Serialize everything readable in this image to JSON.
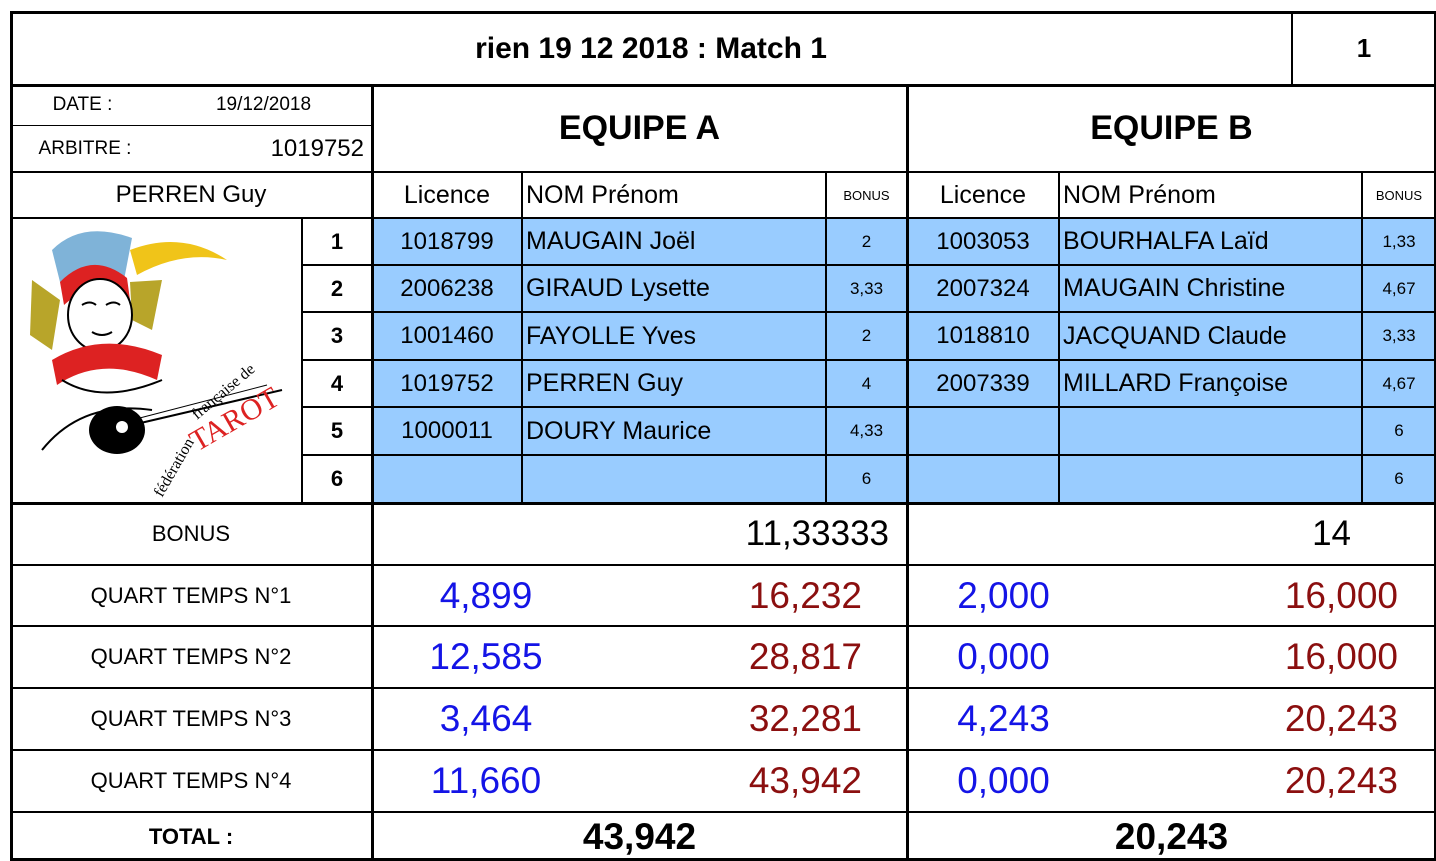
{
  "header": {
    "title": "rien 19 12 2018 : Match 1",
    "number": "1"
  },
  "info": {
    "date_label": "DATE :",
    "date": "19/12/2018",
    "referee_label": "ARBITRE :",
    "referee_licence": "1019752",
    "referee_name": "PERREN Guy"
  },
  "logo": {
    "texts": [
      "fédération",
      "française de",
      "TAROT"
    ]
  },
  "row_numbers": [
    "1",
    "2",
    "3",
    "4",
    "5",
    "6"
  ],
  "labels": {
    "bonus": "BONUS",
    "quarters": [
      "QUART TEMPS N°1",
      "QUART TEMPS N°2",
      "QUART TEMPS N°3",
      "QUART TEMPS N°4"
    ],
    "total": "TOTAL :"
  },
  "teams": [
    {
      "name": "EQUIPE A",
      "columns": [
        "Licence",
        "NOM Prénom",
        "BONUS"
      ],
      "players": [
        {
          "licence": "1018799",
          "name": "MAUGAIN Joël",
          "bonus": "2"
        },
        {
          "licence": "2006238",
          "name": "GIRAUD Lysette",
          "bonus": "3,33"
        },
        {
          "licence": "1001460",
          "name": "FAYOLLE Yves",
          "bonus": "2"
        },
        {
          "licence": "1019752",
          "name": "PERREN Guy",
          "bonus": "4"
        },
        {
          "licence": "1000011",
          "name": "DOURY Maurice",
          "bonus": "4,33"
        },
        {
          "bonus": "6"
        }
      ],
      "bonus_total": "11,33333",
      "quarters": [
        [
          "4,899",
          "16,232"
        ],
        [
          "12,585",
          "28,817"
        ],
        [
          "3,464",
          "32,281"
        ],
        [
          "11,660",
          "43,942"
        ]
      ],
      "total": "43,942"
    },
    {
      "name": "EQUIPE B",
      "columns": [
        "Licence",
        "NOM Prénom",
        "BONUS"
      ],
      "players": [
        {
          "licence": "1003053",
          "name": "BOURHALFA Laïd",
          "bonus": "1,33"
        },
        {
          "licence": "2007324",
          "name": "MAUGAIN Christine",
          "bonus": "4,67"
        },
        {
          "licence": "1018810",
          "name": "JACQUAND Claude",
          "bonus": "3,33"
        },
        {
          "licence": "2007339",
          "name": "MILLARD Françoise",
          "bonus": "4,67"
        },
        {
          "bonus": "6"
        },
        {
          "bonus": "6"
        }
      ],
      "bonus_total": "14",
      "quarters": [
        [
          "2,000",
          "16,000"
        ],
        [
          "0,000",
          "16,000"
        ],
        [
          "4,243",
          "20,243"
        ],
        [
          "0,000",
          "20,243"
        ]
      ],
      "total": "20,243"
    }
  ]
}
